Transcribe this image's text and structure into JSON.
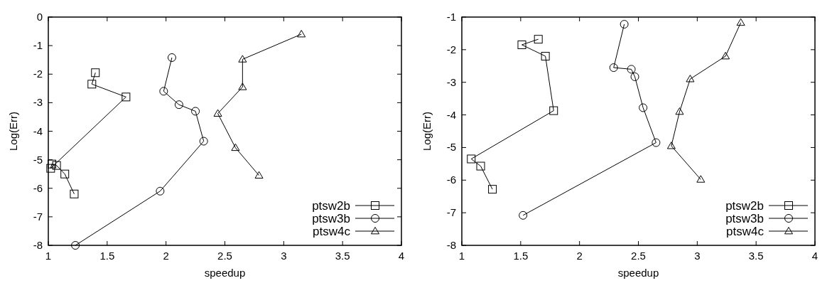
{
  "chart_data": [
    {
      "type": "line",
      "xlabel": "speedup",
      "ylabel": "Log(Err)",
      "xlim": [
        1,
        4
      ],
      "xticks": [
        1,
        1.5,
        2,
        2.5,
        3,
        3.5,
        4
      ],
      "ylim": [
        -8,
        0
      ],
      "yticks": [
        -8,
        -7,
        -6,
        -5,
        -4,
        -3,
        -2,
        -1,
        0
      ],
      "legend": "bottom right",
      "grid": false,
      "series": [
        {
          "name": "ptsw2b",
          "color": "#000000",
          "marker": "square",
          "x": [
            1.4,
            1.37,
            1.66,
            1.02,
            1.03,
            1.07,
            1.14,
            1.22
          ],
          "values": [
            -1.95,
            -2.35,
            -2.8,
            -5.3,
            -5.15,
            -5.2,
            -5.5,
            -6.2
          ]
        },
        {
          "name": "ptsw3b",
          "color": "#000000",
          "marker": "circle",
          "x": [
            2.05,
            1.98,
            2.11,
            2.25,
            2.32,
            1.95,
            1.23
          ],
          "values": [
            -1.42,
            -2.6,
            -3.07,
            -3.3,
            -4.35,
            -6.1,
            -8.0
          ]
        },
        {
          "name": "ptsw4c",
          "color": "#000000",
          "marker": "triangle",
          "x": [
            3.15,
            2.65,
            2.65,
            2.44,
            2.59,
            2.79
          ],
          "values": [
            -0.6,
            -1.48,
            -2.45,
            -3.38,
            -4.58,
            -5.55
          ]
        }
      ]
    },
    {
      "type": "line",
      "xlabel": "speedup",
      "ylabel": "Log(Err)",
      "xlim": [
        1,
        4
      ],
      "xticks": [
        1,
        1.5,
        2,
        2.5,
        3,
        3.5,
        4
      ],
      "ylim": [
        -8,
        -1
      ],
      "yticks": [
        -8,
        -7,
        -6,
        -5,
        -4,
        -3,
        -2,
        -1
      ],
      "legend": "bottom right",
      "grid": false,
      "series": [
        {
          "name": "ptsw2b",
          "color": "#000000",
          "marker": "square",
          "x": [
            1.65,
            1.51,
            1.71,
            1.78,
            1.08,
            1.16,
            1.26
          ],
          "values": [
            -1.68,
            -1.85,
            -2.2,
            -3.87,
            -5.35,
            -5.57,
            -6.28
          ]
        },
        {
          "name": "ptsw3b",
          "color": "#000000",
          "marker": "circle",
          "x": [
            2.38,
            2.29,
            2.44,
            2.47,
            2.54,
            2.65,
            1.52
          ],
          "values": [
            -1.22,
            -2.55,
            -2.6,
            -2.83,
            -3.78,
            -4.85,
            -7.08
          ]
        },
        {
          "name": "ptsw4c",
          "color": "#000000",
          "marker": "triangle",
          "x": [
            3.37,
            3.24,
            2.94,
            2.85,
            2.78,
            3.03
          ],
          "values": [
            -1.17,
            -2.2,
            -2.9,
            -3.9,
            -4.95,
            -5.98
          ]
        }
      ]
    }
  ]
}
